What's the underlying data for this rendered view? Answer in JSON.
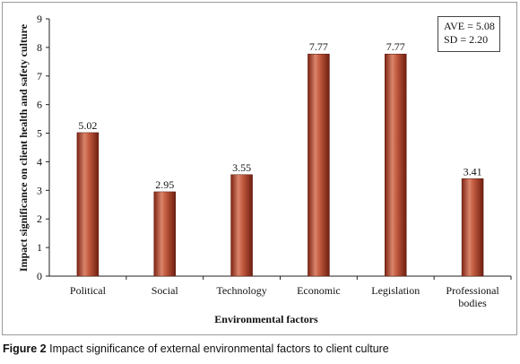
{
  "chart_data": {
    "type": "bar",
    "categories": [
      "Political",
      "Social",
      "Technology",
      "Economic",
      "Legislation",
      "Professional bodies"
    ],
    "category_lines": [
      [
        "Political"
      ],
      [
        "Social"
      ],
      [
        "Technology"
      ],
      [
        "Economic"
      ],
      [
        "Legislation"
      ],
      [
        "Professional",
        "bodies"
      ]
    ],
    "values": [
      5.02,
      2.95,
      3.55,
      7.77,
      7.77,
      3.41
    ],
    "value_labels": [
      "5.02",
      "2.95",
      "3.55",
      "7.77",
      "7.77",
      "3.41"
    ],
    "xlabel": "Environmental factors",
    "ylabel": "Impact significance on client health and safety culture",
    "ylim": [
      0,
      9
    ],
    "yticks": [
      "0",
      "1",
      "2",
      "3",
      "4",
      "5",
      "6",
      "7",
      "8",
      "9"
    ],
    "grid": false,
    "bar_color": "#b8462e",
    "annotation": {
      "line1": "AVE = 5.08",
      "line2": "SD = 2.20",
      "placement": "top-right"
    }
  },
  "caption": {
    "figure_label": "Figure 2",
    "text": " Impact significance of external environmental factors to client culture"
  }
}
